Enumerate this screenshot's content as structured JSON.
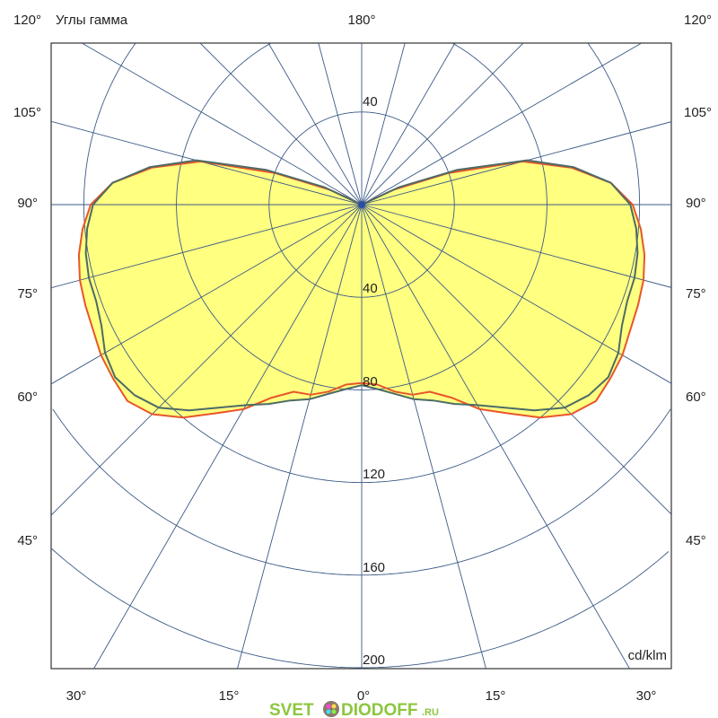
{
  "chart_data": {
    "type": "polar",
    "title": "Углы гамма",
    "unit_label": "cd/klm",
    "radial_ticks": [
      40,
      80,
      120,
      160,
      200
    ],
    "radial_range": [
      0,
      200
    ],
    "angle_step_deg": 15,
    "angle_labels": {
      "top": "180°",
      "left": [
        "120°",
        "105°",
        "90°",
        "75°",
        "60°",
        "45°"
      ],
      "right": [
        "120°",
        "105°",
        "90°",
        "75°",
        "60°",
        "45°"
      ],
      "bottom": [
        "30°",
        "15°",
        "0°",
        "15°",
        "30°"
      ]
    },
    "gamma_deg": [
      0,
      5,
      10,
      15,
      20,
      25,
      30,
      35,
      40,
      45,
      50,
      55,
      60,
      65,
      70,
      75,
      80,
      85,
      90,
      95,
      100,
      105,
      110,
      115,
      120,
      180
    ],
    "series": [
      {
        "color": "#e8562a",
        "values": [
          77,
          78,
          82,
          85,
          86,
          92,
          102,
          110,
          120,
          128,
          132,
          131,
          130,
          128,
          127,
          126,
          124,
          121,
          117,
          108,
          92,
          72,
          40,
          15,
          0,
          0
        ]
      },
      {
        "color": "#4d6b66",
        "values": [
          78,
          80,
          83,
          87,
          90,
          95,
          100,
          107,
          116,
          124,
          128,
          130,
          128,
          124,
          122,
          122,
          121,
          119,
          116,
          108,
          93,
          74,
          44,
          18,
          0,
          0
        ]
      }
    ],
    "fill_color": "#ffff80",
    "grid_color": "#3c5a86",
    "grid": true
  },
  "watermark": {
    "text": "SVET",
    "text2": "DIODOFF",
    "suffix": ".RU"
  }
}
